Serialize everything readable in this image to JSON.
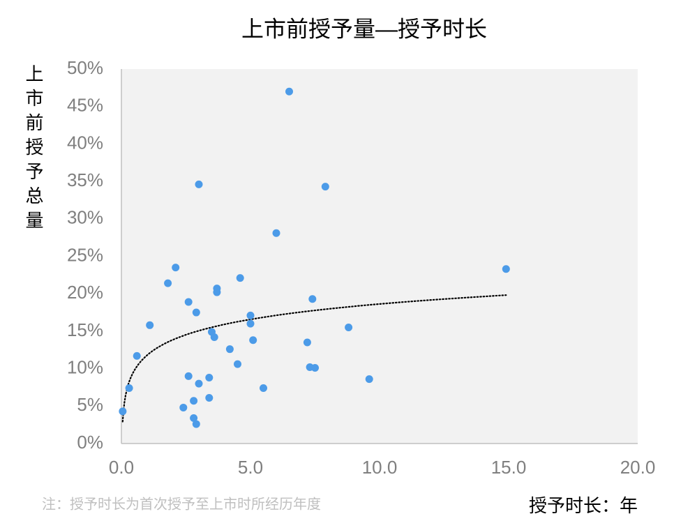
{
  "chart_data": {
    "type": "scatter",
    "title": "上市前授予量—授予时长",
    "y_label": "上市前授予总量",
    "x_label": "授予时长：年",
    "note": "注：授予时长为首次授予至上市时所经历年度",
    "color": "#4c9be8",
    "trendline": {
      "type": "logarithmic",
      "color": "#000000",
      "style": "dotted"
    },
    "xlim": [
      0,
      20
    ],
    "ylim": [
      0,
      50
    ],
    "xticks": [
      {
        "value": 0,
        "label": "0.0"
      },
      {
        "value": 5,
        "label": "5.0"
      },
      {
        "value": 10,
        "label": "10.0"
      },
      {
        "value": 15,
        "label": "15.0"
      },
      {
        "value": 20,
        "label": "20.0"
      }
    ],
    "yticks": [
      {
        "value": 0,
        "label": "0%"
      },
      {
        "value": 5,
        "label": "5%"
      },
      {
        "value": 10,
        "label": "10%"
      },
      {
        "value": 15,
        "label": "15%"
      },
      {
        "value": 20,
        "label": "20%"
      },
      {
        "value": 25,
        "label": "25%"
      },
      {
        "value": 30,
        "label": "30%"
      },
      {
        "value": 35,
        "label": "35%"
      },
      {
        "value": 40,
        "label": "40%"
      },
      {
        "value": 45,
        "label": "45%"
      },
      {
        "value": 50,
        "label": "50%"
      }
    ],
    "x": [
      0.05,
      0.3,
      0.6,
      1.1,
      1.8,
      2.1,
      2.4,
      2.6,
      2.6,
      2.8,
      2.8,
      2.9,
      2.9,
      3.0,
      3.0,
      3.4,
      3.4,
      3.5,
      3.7,
      3.7,
      3.6,
      4.2,
      4.5,
      4.6,
      5.0,
      5.0,
      5.1,
      5.5,
      6.0,
      6.5,
      7.2,
      7.4,
      7.3,
      7.5,
      7.9,
      8.8,
      9.6,
      14.9
    ],
    "values": [
      4.3,
      7.4,
      11.7,
      15.8,
      21.4,
      23.5,
      4.8,
      9.0,
      18.9,
      5.7,
      3.4,
      2.6,
      17.5,
      8.0,
      34.6,
      6.1,
      8.8,
      14.9,
      20.7,
      20.2,
      14.2,
      12.6,
      10.6,
      22.1,
      17.1,
      16.0,
      13.8,
      7.4,
      28.1,
      47.0,
      13.5,
      19.3,
      10.2,
      10.1,
      34.3,
      15.5,
      8.6,
      23.3
    ]
  }
}
